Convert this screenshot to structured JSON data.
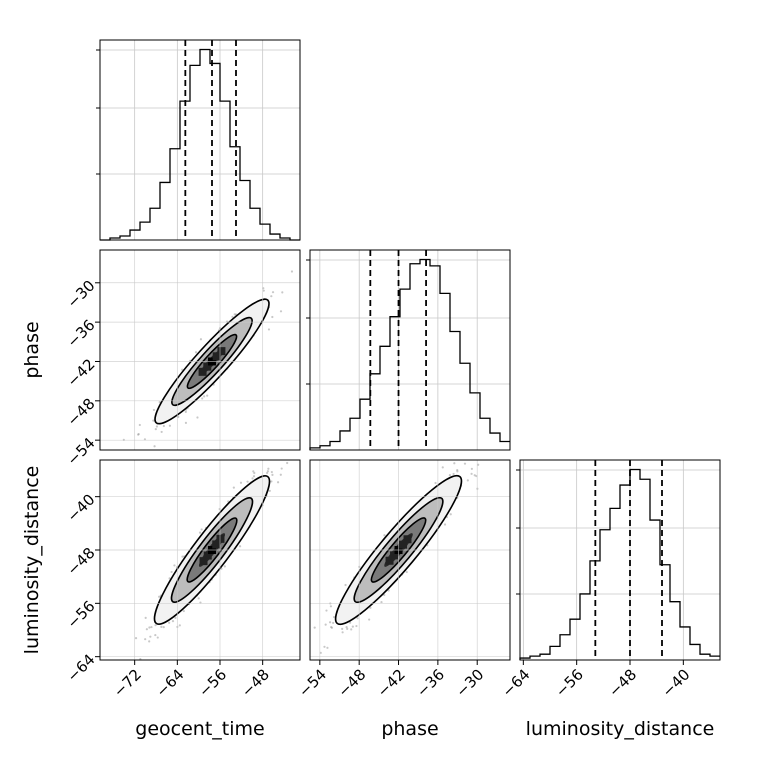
{
  "chart_data": {
    "type": "corner",
    "parameters": [
      "geocent_time",
      "phase",
      "luminosity_distance"
    ],
    "axis_labels": {
      "x": [
        "geocent_time",
        "phase",
        "luminosity_distance"
      ],
      "y": [
        "",
        "phase",
        "luminosity_distance"
      ]
    },
    "ranges": {
      "geocent_time": [
        -78.5,
        -41.0
      ],
      "phase": [
        -55.5,
        -25.0
      ],
      "luminosity_distance": [
        -64.5,
        -34.5
      ]
    },
    "ticks": {
      "geocent_time": [
        "-72",
        "-64",
        "-56",
        "-48"
      ],
      "phase": [
        "-54",
        "-48",
        "-42",
        "-36",
        "-30"
      ],
      "luminosity_distance": [
        "-64",
        "-56",
        "-48",
        "-40"
      ]
    },
    "tick_values": {
      "geocent_time": [
        -72,
        -64,
        -56,
        -48
      ],
      "phase": [
        -54,
        -48,
        -42,
        -36,
        -30
      ],
      "luminosity_distance": [
        -64,
        -56,
        -48,
        -40
      ]
    },
    "quantiles": {
      "geocent_time": [
        -62.5,
        -57.5,
        -53.0
      ],
      "phase": [
        -46.3,
        -42.0,
        -37.8
      ],
      "luminosity_distance": [
        -53.2,
        -48.0,
        -43.2
      ]
    },
    "histograms": {
      "geocent_time": {
        "edges_start": -78.5,
        "bin_width": 1.875,
        "counts": [
          0,
          1,
          2,
          5,
          9,
          16,
          29,
          46,
          70,
          88,
          96,
          89,
          70,
          47,
          30,
          16,
          8,
          3,
          1,
          0
        ]
      },
      "phase": {
        "edges_start": -55.5,
        "bin_width": 1.525,
        "counts": [
          1,
          2,
          4,
          9,
          15,
          24,
          36,
          49,
          63,
          76,
          88,
          90,
          87,
          74,
          56,
          41,
          27,
          15,
          8,
          4
        ]
      },
      "luminosity_distance": {
        "edges_start": -64.5,
        "bin_width": 1.5,
        "counts": [
          1,
          2,
          3,
          7,
          13,
          21,
          34,
          51,
          67,
          78,
          90,
          98,
          93,
          72,
          49,
          30,
          17,
          8,
          3,
          2
        ]
      }
    },
    "grid": true,
    "colors": {
      "data": "#000000",
      "scatter": "#9a9a9a",
      "grid": "#c8c8c8"
    }
  }
}
